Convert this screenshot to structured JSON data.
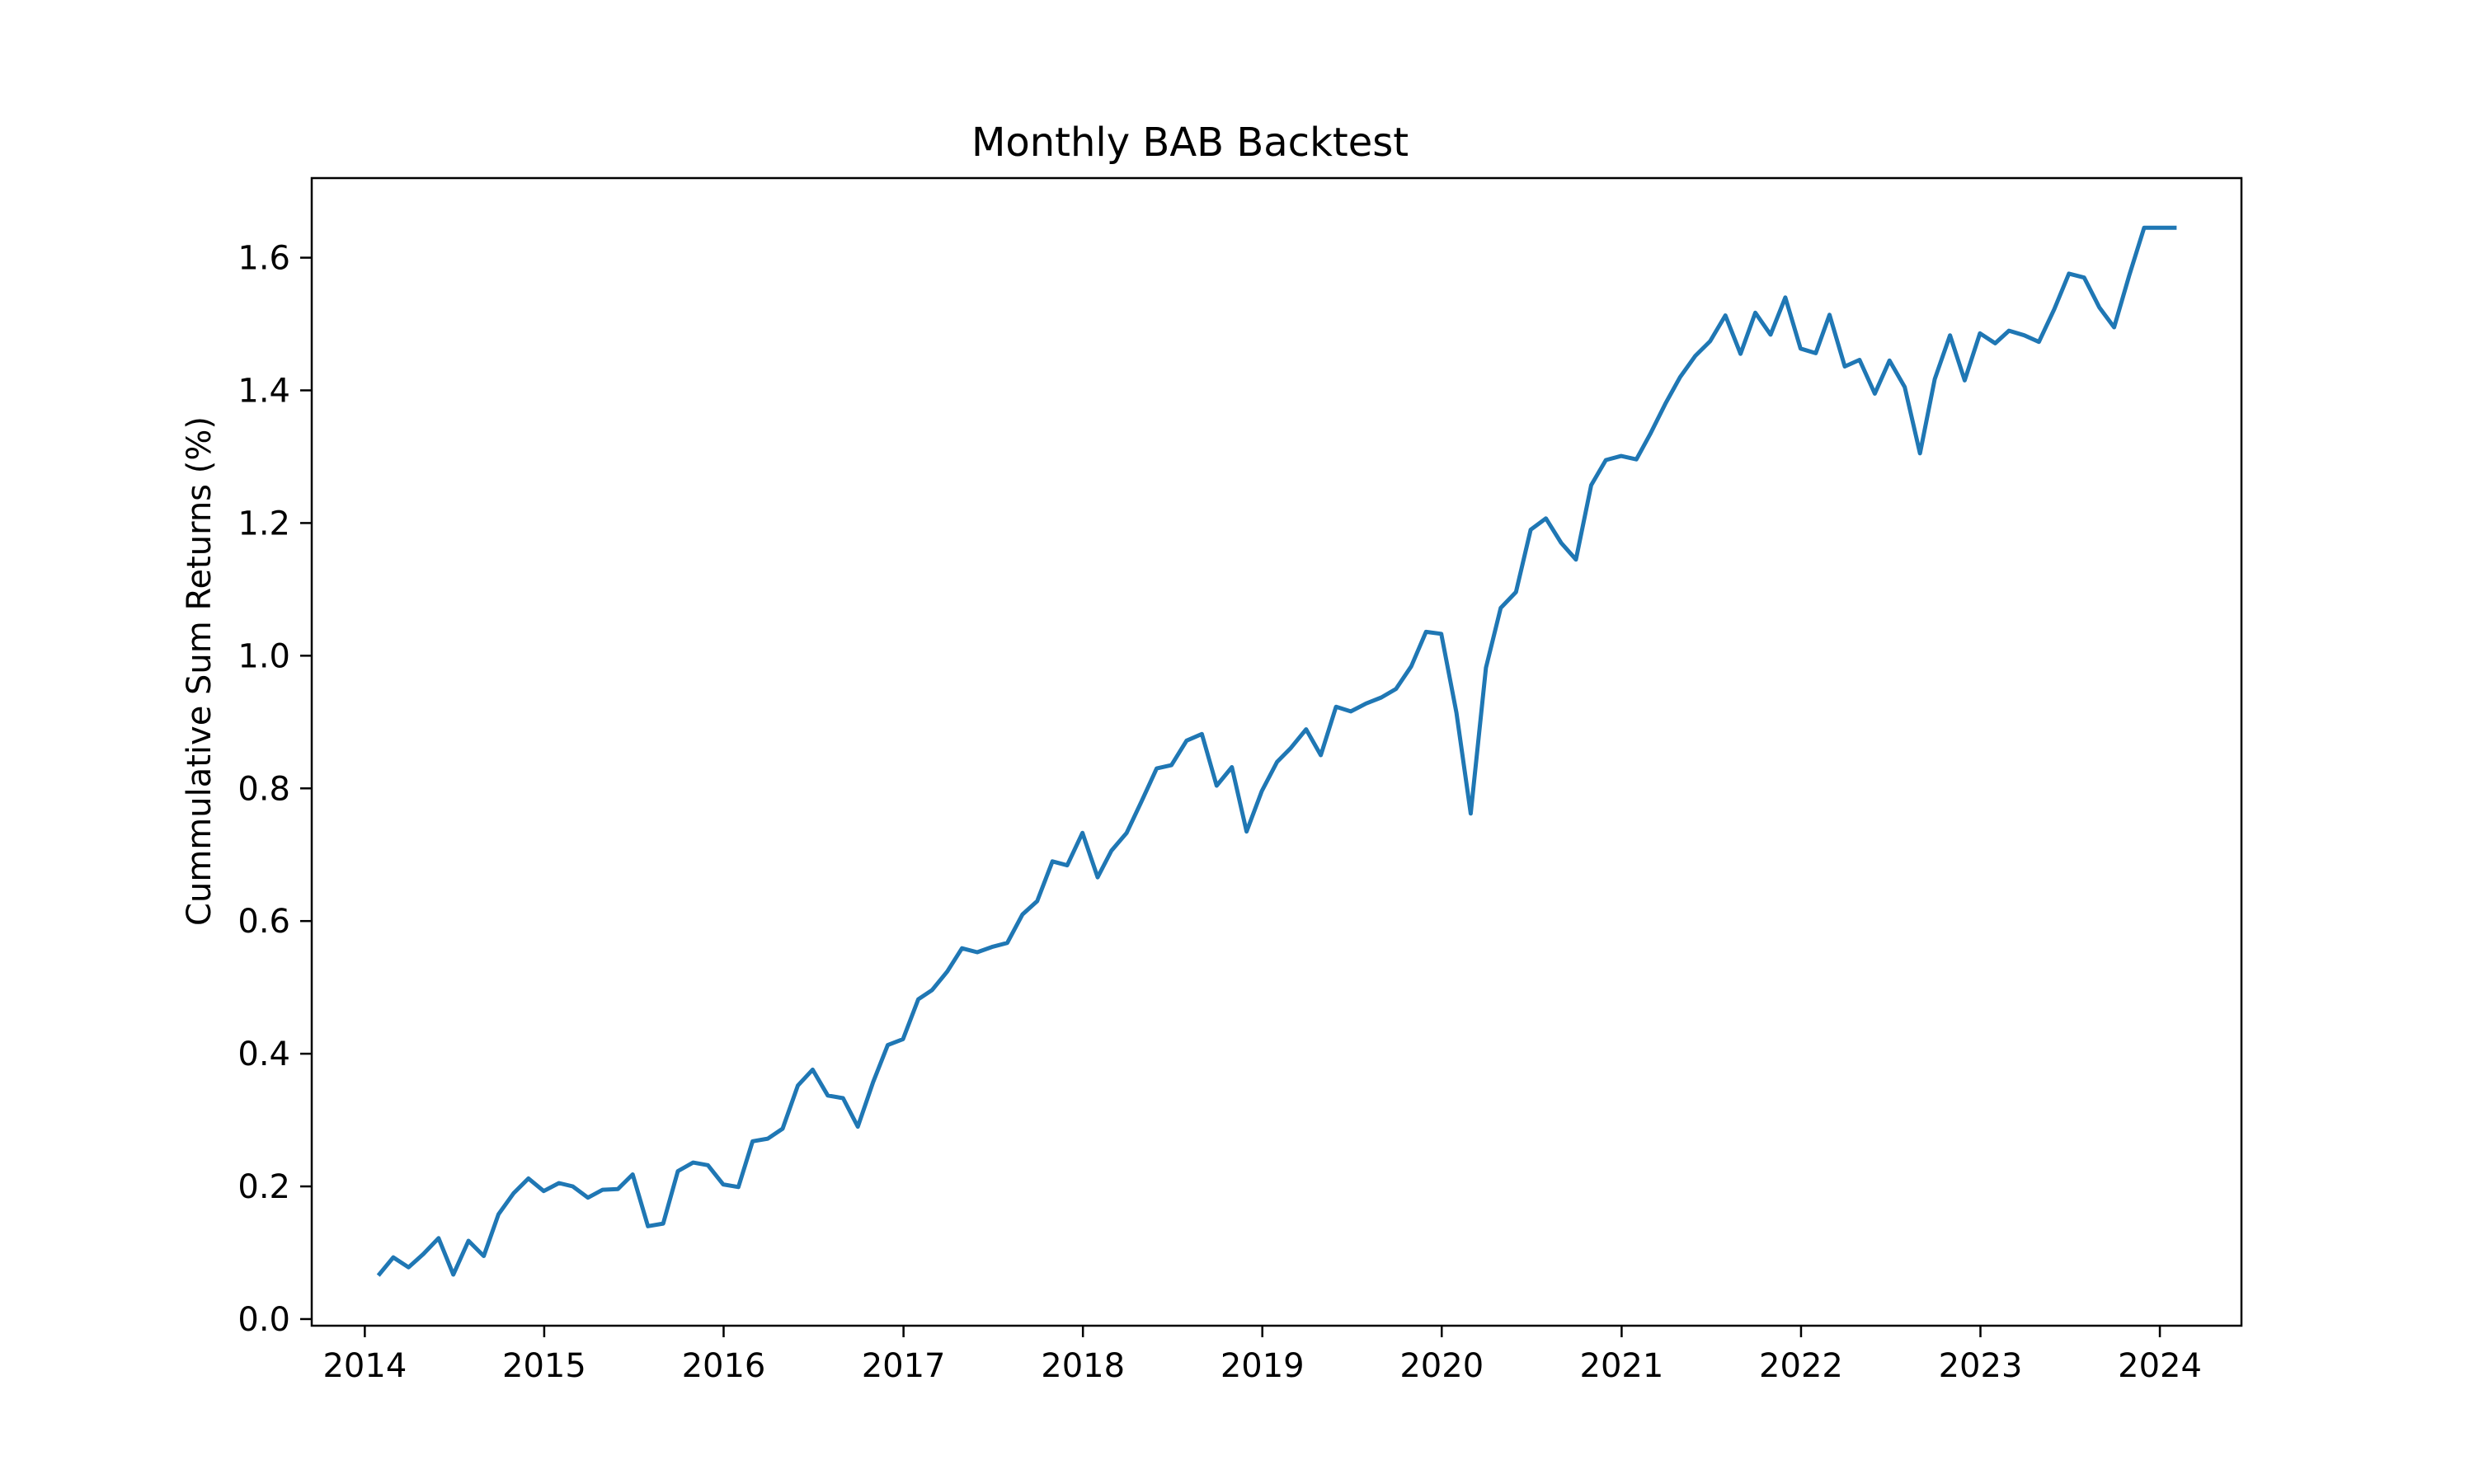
{
  "chart_data": {
    "type": "line",
    "title": "Monthly BAB Backtest",
    "xlabel": "",
    "ylabel": "Cummulative Sum Returns (%)",
    "xlim": [
      "2013-09-15",
      "2024-06-15"
    ],
    "ylim": [
      -0.01,
      1.72
    ],
    "x_ticks": [
      "2014",
      "2015",
      "2016",
      "2017",
      "2018",
      "2019",
      "2020",
      "2021",
      "2022",
      "2023",
      "2024"
    ],
    "y_ticks": [
      "0.0",
      "0.2",
      "0.4",
      "0.6",
      "0.8",
      "1.0",
      "1.2",
      "1.4",
      "1.6"
    ],
    "grid": false,
    "line_color": "#1f77b4",
    "series": [
      {
        "x": [
          "2014-01-31",
          "2014-02-28",
          "2014-03-31",
          "2014-04-30",
          "2014-05-31",
          "2014-06-30",
          "2014-07-31",
          "2014-08-31",
          "2014-09-30",
          "2014-10-31",
          "2014-11-30",
          "2014-12-31",
          "2015-01-31",
          "2015-02-28",
          "2015-03-31",
          "2015-04-30",
          "2015-05-31",
          "2015-06-30",
          "2015-07-31",
          "2015-08-31",
          "2015-09-30",
          "2015-10-31",
          "2015-11-30",
          "2015-12-31",
          "2016-01-31",
          "2016-02-29",
          "2016-03-31",
          "2016-04-30",
          "2016-05-31",
          "2016-06-30",
          "2016-07-31",
          "2016-08-31",
          "2016-09-30",
          "2016-10-31",
          "2016-11-30",
          "2016-12-31",
          "2017-01-31",
          "2017-02-28",
          "2017-03-31",
          "2017-04-30",
          "2017-05-31",
          "2017-06-30",
          "2017-07-31",
          "2017-08-31",
          "2017-09-30",
          "2017-10-31",
          "2017-11-30",
          "2017-12-31",
          "2018-01-31",
          "2018-02-28",
          "2018-03-31",
          "2018-04-30",
          "2018-05-31",
          "2018-06-30",
          "2018-07-31",
          "2018-08-31",
          "2018-09-30",
          "2018-10-31",
          "2018-11-30",
          "2018-12-31",
          "2019-01-31",
          "2019-02-28",
          "2019-03-31",
          "2019-04-30",
          "2019-05-31",
          "2019-06-30",
          "2019-07-31",
          "2019-08-31",
          "2019-09-30",
          "2019-10-31",
          "2019-11-30",
          "2019-12-31",
          "2020-01-31",
          "2020-02-29",
          "2020-03-31",
          "2020-04-30",
          "2020-05-31",
          "2020-06-30",
          "2020-07-31",
          "2020-08-31",
          "2020-09-30",
          "2020-10-31",
          "2020-11-30",
          "2020-12-31",
          "2021-01-31",
          "2021-02-28",
          "2021-03-31",
          "2021-04-30",
          "2021-05-31",
          "2021-06-30",
          "2021-07-31",
          "2021-08-31",
          "2021-09-30",
          "2021-10-31",
          "2021-11-30",
          "2021-12-31",
          "2022-01-31",
          "2022-02-28",
          "2022-03-31",
          "2022-04-30",
          "2022-05-31",
          "2022-06-30",
          "2022-07-31",
          "2022-08-31",
          "2022-09-30",
          "2022-10-31",
          "2022-11-30",
          "2022-12-31",
          "2023-01-31",
          "2023-02-28",
          "2023-03-31",
          "2023-04-30",
          "2023-05-31",
          "2023-06-30",
          "2023-07-31",
          "2023-08-31",
          "2023-09-30",
          "2023-10-31",
          "2023-11-30",
          "2023-12-31",
          "2024-01-31"
        ],
        "y": [
          0.068,
          0.093,
          0.078,
          0.098,
          0.122,
          0.067,
          0.118,
          0.095,
          0.158,
          0.19,
          0.212,
          0.193,
          0.205,
          0.2,
          0.183,
          0.195,
          0.196,
          0.218,
          0.14,
          0.144,
          0.223,
          0.236,
          0.232,
          0.203,
          0.199,
          0.268,
          0.272,
          0.287,
          0.352,
          0.376,
          0.337,
          0.333,
          0.29,
          0.357,
          0.413,
          0.422,
          0.482,
          0.496,
          0.524,
          0.559,
          0.553,
          0.561,
          0.567,
          0.61,
          0.63,
          0.69,
          0.684,
          0.733,
          0.666,
          0.706,
          0.733,
          0.78,
          0.83,
          0.835,
          0.872,
          0.882,
          0.804,
          0.832,
          0.735,
          0.796,
          0.84,
          0.861,
          0.889,
          0.85,
          0.923,
          0.916,
          0.928,
          0.937,
          0.95,
          0.984,
          1.036,
          1.033,
          0.914,
          0.762,
          0.982,
          1.072,
          1.096,
          1.19,
          1.207,
          1.17,
          1.145,
          1.257,
          1.295,
          1.301,
          1.296,
          1.334,
          1.38,
          1.42,
          1.452,
          1.474,
          1.513,
          1.455,
          1.517,
          1.484,
          1.54,
          1.463,
          1.456,
          1.514,
          1.436,
          1.446,
          1.395,
          1.445,
          1.405,
          1.305,
          1.417,
          1.483,
          1.415,
          1.486,
          1.471,
          1.49,
          1.483,
          1.473,
          1.522,
          1.576,
          1.57,
          1.525,
          1.495,
          1.574,
          1.645,
          1.645,
          1.645
        ]
      }
    ]
  }
}
